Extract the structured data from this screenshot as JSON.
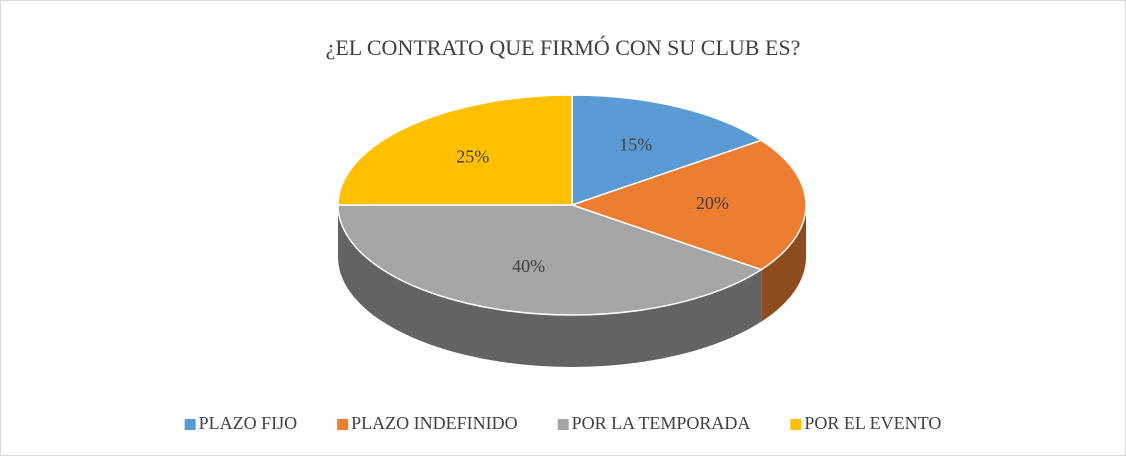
{
  "chart_data": {
    "type": "pie",
    "title": "¿EL CONTRATO QUE FIRMÓ CON SU CLUB ES?",
    "categories": [
      "PLAZO FIJO",
      "PLAZO INDEFINIDO",
      "POR LA TEMPORADA",
      "POR EL EVENTO"
    ],
    "values": [
      15,
      20,
      40,
      25
    ],
    "value_labels": [
      "15%",
      "20%",
      "40%",
      "25%"
    ],
    "colors": [
      "#5b9bd5",
      "#ed7d31",
      "#a5a5a5",
      "#ffc000"
    ],
    "legend": "bottom"
  }
}
